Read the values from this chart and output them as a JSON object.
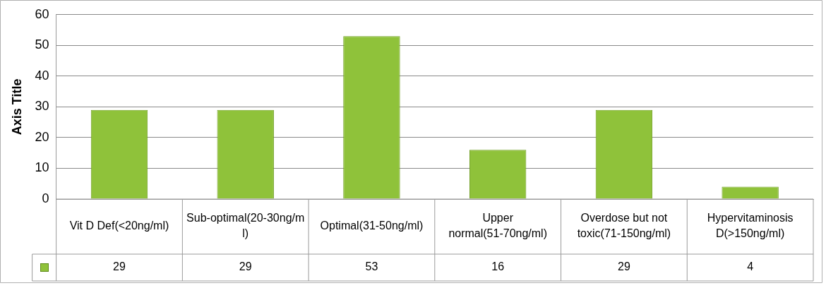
{
  "chart_data": {
    "type": "bar",
    "ylabel": "Axis Title",
    "categories": [
      "Vit D Def(<20ng/ml)",
      "Sub-optimal(20-30ng/ml)",
      "Optimal(31-50ng/ml)",
      "Upper normal(51-70ng/ml)",
      "Overdose but not toxic(71-150ng/ml)",
      "Hypervitaminosis D(>150ng/ml)"
    ],
    "values": [
      29,
      29,
      53,
      16,
      29,
      4
    ],
    "color": "#8fc23a",
    "ylim": [
      0,
      60
    ],
    "yticks": [
      0,
      10,
      20,
      30,
      40,
      50,
      60
    ],
    "grid": "y",
    "legend": false,
    "data_labels": true
  }
}
